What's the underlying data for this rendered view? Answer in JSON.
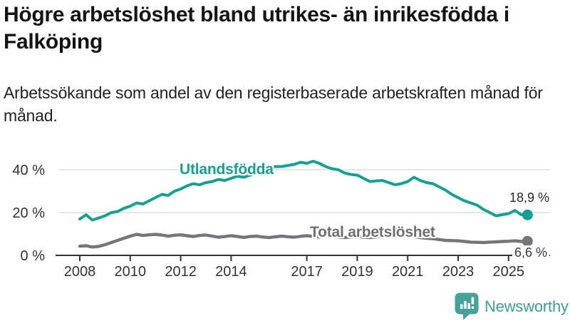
{
  "header": {
    "title": "Högre arbetslöshet bland utrikes- än inrikesfödda i Falköping",
    "subtitle": "Arbetssökande som andel av den registerbaserade arbetskraften månad för månad."
  },
  "chart_data": {
    "type": "line",
    "title": "Högre arbetslöshet bland utrikes- än inrikesfödda i Falköping",
    "grid": "horizontal",
    "x_axis": {
      "ticks": [
        2008,
        2010,
        2012,
        2014,
        2017,
        2019,
        2021,
        2023,
        2025
      ],
      "range": [
        2007.0,
        2026.6
      ]
    },
    "y_axis": {
      "unit": "%",
      "ticks": [
        0,
        20,
        40
      ],
      "tick_labels": [
        "0 %",
        "20 %",
        "40 %"
      ],
      "range": [
        0,
        47
      ]
    },
    "x": [
      2008,
      2008.25,
      2008.5,
      2008.75,
      2009,
      2009.25,
      2009.5,
      2009.75,
      2010,
      2010.25,
      2010.5,
      2010.75,
      2011,
      2011.25,
      2011.5,
      2011.75,
      2012,
      2012.25,
      2012.5,
      2012.75,
      2013,
      2013.25,
      2013.5,
      2013.75,
      2014,
      2014.25,
      2014.5,
      2014.75,
      2015,
      2015.25,
      2015.5,
      2015.75,
      2016,
      2016.25,
      2016.5,
      2016.75,
      2017,
      2017.25,
      2017.5,
      2017.75,
      2018,
      2018.25,
      2018.5,
      2018.75,
      2019,
      2019.25,
      2019.5,
      2019.75,
      2020,
      2020.25,
      2020.5,
      2020.75,
      2021,
      2021.25,
      2021.5,
      2021.75,
      2022,
      2022.25,
      2022.5,
      2022.75,
      2023,
      2023.25,
      2023.5,
      2023.75,
      2024,
      2024.25,
      2024.5,
      2024.75,
      2025,
      2025.25,
      2025.5,
      2025.75
    ],
    "series": [
      {
        "name": "Utlandsfödda",
        "slug": "utlandsfodda",
        "color": "#12A193",
        "end_value": 18.9,
        "end_label": "18,9 %",
        "values": [
          17.0,
          19.0,
          16.5,
          17.5,
          18.5,
          20.0,
          20.5,
          22.0,
          23.0,
          24.5,
          24.0,
          25.5,
          27.0,
          28.5,
          28.0,
          30.0,
          31.0,
          32.5,
          33.5,
          33.0,
          34.0,
          34.5,
          35.5,
          35.0,
          36.0,
          37.0,
          36.5,
          37.5,
          38.5,
          40.0,
          41.0,
          41.5,
          41.5,
          42.0,
          42.5,
          43.5,
          43.0,
          44.0,
          43.0,
          41.5,
          40.5,
          40.0,
          38.5,
          37.8,
          37.5,
          36.0,
          34.5,
          34.8,
          35.0,
          34.0,
          33.0,
          33.5,
          34.5,
          36.5,
          35.0,
          34.0,
          33.5,
          32.0,
          30.5,
          28.5,
          27.0,
          25.5,
          24.5,
          23.5,
          21.5,
          20.0,
          18.5,
          19.0,
          19.5,
          21.0,
          19.0,
          18.9
        ]
      },
      {
        "name": "Total arbetslöshet",
        "slug": "total-arbetsloshet",
        "color": "#76767A",
        "end_value": 6.6,
        "end_label": "6,6 %",
        "values": [
          4.3,
          4.5,
          3.9,
          4.2,
          5.0,
          6.0,
          7.0,
          8.0,
          9.0,
          9.8,
          9.3,
          9.6,
          9.8,
          9.5,
          9.0,
          9.4,
          9.6,
          9.2,
          8.8,
          9.3,
          9.5,
          9.0,
          8.5,
          8.8,
          9.2,
          8.8,
          8.4,
          8.8,
          9.0,
          8.6,
          8.3,
          8.7,
          9.0,
          8.7,
          8.5,
          8.9,
          9.2,
          8.9,
          8.6,
          9.0,
          9.0,
          8.6,
          8.3,
          8.6,
          8.8,
          8.5,
          8.3,
          8.6,
          9.0,
          9.6,
          9.3,
          9.0,
          9.2,
          8.8,
          8.3,
          8.0,
          7.8,
          7.4,
          7.0,
          6.9,
          6.8,
          6.5,
          6.2,
          6.1,
          6.0,
          6.2,
          6.3,
          6.5,
          6.6,
          6.8,
          6.5,
          6.6
        ]
      }
    ],
    "style": {
      "grid_color": "#d8d8d8",
      "axis_color": "#333333",
      "tick_label_color": "#333333"
    }
  },
  "branding": {
    "name": "Newsworthy",
    "color": "#3D9E97",
    "icon": "bar-chart-speech-bubble-icon"
  }
}
